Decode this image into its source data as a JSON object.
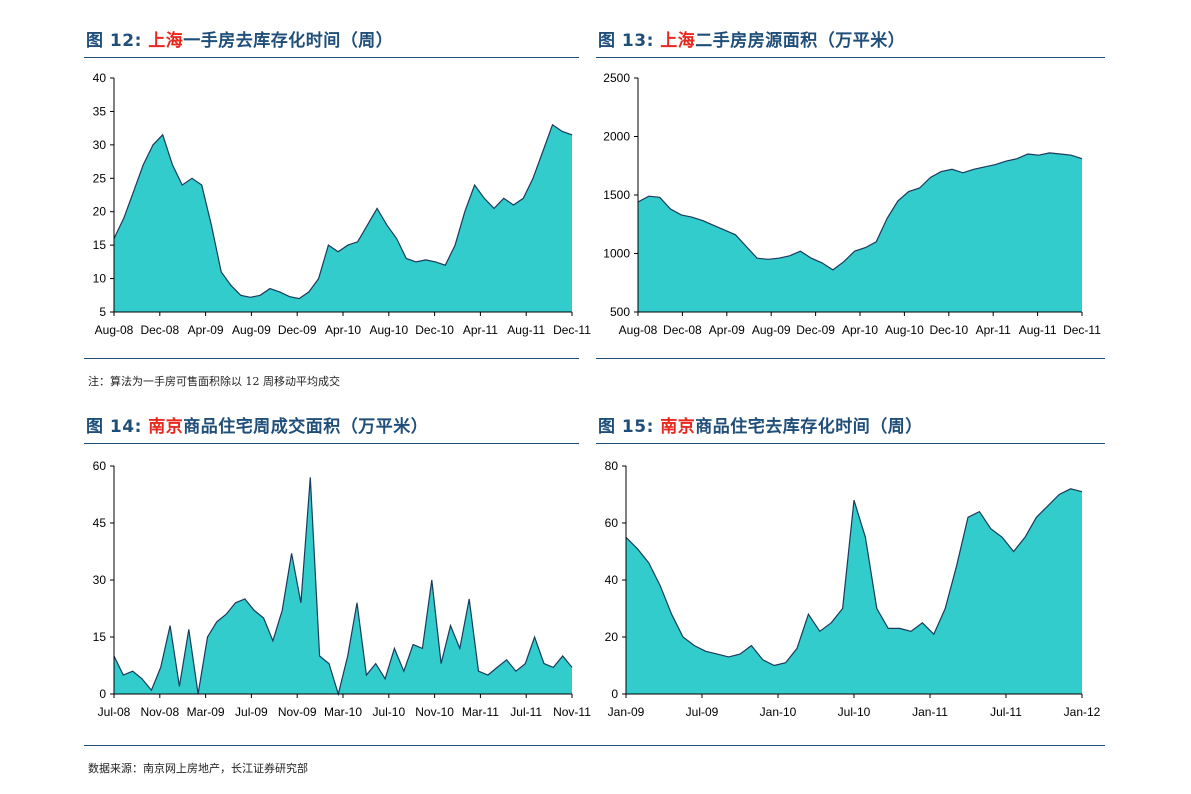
{
  "charts": [
    {
      "title_prefix": "图 12:",
      "title_city": "上海",
      "title_rest": "一手房去库存化时间（周）"
    },
    {
      "title_prefix": "图 13:",
      "title_city": "上海",
      "title_rest": "二手房房源面积（万平米）"
    },
    {
      "title_prefix": "图 14:",
      "title_city": "南京",
      "title_rest": "商品住宅周成交面积（万平米）"
    },
    {
      "title_prefix": "图 15:",
      "title_city": "南京",
      "title_rest": "商品住宅去库存化时间（周）"
    }
  ],
  "notes": {
    "top_note": "注：算法为一手房可售面积除以 12 周移动平均成交",
    "bottom_note": "数据来源：南京网上房地产，长江证券研究部"
  },
  "colors": {
    "fill": "#33cccc",
    "line": "#1a3a5c",
    "title": "#1f4e79",
    "city": "#e8281e"
  },
  "chart_data": [
    {
      "type": "area",
      "ylim": [
        5,
        40
      ],
      "yticks": [
        5,
        10,
        15,
        20,
        25,
        30,
        35,
        40
      ],
      "x_ticks": [
        "Aug-08",
        "Dec-08",
        "Apr-09",
        "Aug-09",
        "Dec-09",
        "Apr-10",
        "Aug-10",
        "Dec-10",
        "Apr-11",
        "Aug-11",
        "Dec-11"
      ],
      "x_range": [
        "2008-08",
        "2012-01"
      ],
      "series": [
        {
          "values": [
            [
              0,
              16
            ],
            [
              1,
              19
            ],
            [
              2,
              23
            ],
            [
              3,
              27
            ],
            [
              4,
              30
            ],
            [
              5,
              31.5
            ],
            [
              6,
              27
            ],
            [
              7,
              24
            ],
            [
              8,
              25
            ],
            [
              9,
              24
            ],
            [
              10,
              18
            ],
            [
              11,
              11
            ],
            [
              12,
              9
            ],
            [
              13,
              7.5
            ],
            [
              14,
              7.2
            ],
            [
              15,
              7.5
            ],
            [
              16,
              8.5
            ],
            [
              17,
              8
            ],
            [
              18,
              7.3
            ],
            [
              19,
              7
            ],
            [
              20,
              8
            ],
            [
              21,
              10
            ],
            [
              22,
              15
            ],
            [
              23,
              14
            ],
            [
              24,
              15
            ],
            [
              25,
              15.5
            ],
            [
              26,
              18
            ],
            [
              27,
              20.5
            ],
            [
              28,
              18
            ],
            [
              29,
              16
            ],
            [
              30,
              13
            ],
            [
              31,
              12.5
            ],
            [
              32,
              12.8
            ],
            [
              33,
              12.5
            ],
            [
              34,
              12
            ],
            [
              35,
              15
            ],
            [
              36,
              20
            ],
            [
              37,
              24
            ],
            [
              38,
              22
            ],
            [
              39,
              20.5
            ],
            [
              40,
              22
            ],
            [
              41,
              21
            ],
            [
              42,
              22
            ],
            [
              43,
              25
            ],
            [
              44,
              29
            ],
            [
              45,
              33
            ],
            [
              46,
              32
            ],
            [
              47,
              31.5
            ]
          ]
        }
      ]
    },
    {
      "type": "area",
      "ylim": [
        500,
        2500
      ],
      "yticks": [
        500,
        1000,
        1500,
        2000,
        2500
      ],
      "x_ticks": [
        "Aug-08",
        "Dec-08",
        "Apr-09",
        "Aug-09",
        "Dec-09",
        "Apr-10",
        "Aug-10",
        "Dec-10",
        "Apr-11",
        "Aug-11",
        "Dec-11"
      ],
      "x_range": [
        "2008-08",
        "2012-01"
      ],
      "series": [
        {
          "values": [
            [
              0,
              1440
            ],
            [
              1,
              1490
            ],
            [
              2,
              1480
            ],
            [
              3,
              1380
            ],
            [
              4,
              1330
            ],
            [
              5,
              1310
            ],
            [
              6,
              1280
            ],
            [
              7,
              1240
            ],
            [
              8,
              1200
            ],
            [
              9,
              1160
            ],
            [
              10,
              1060
            ],
            [
              11,
              960
            ],
            [
              12,
              950
            ],
            [
              13,
              960
            ],
            [
              14,
              980
            ],
            [
              15,
              1020
            ],
            [
              16,
              960
            ],
            [
              17,
              920
            ],
            [
              18,
              860
            ],
            [
              19,
              930
            ],
            [
              20,
              1020
            ],
            [
              21,
              1050
            ],
            [
              22,
              1100
            ],
            [
              23,
              1300
            ],
            [
              24,
              1450
            ],
            [
              25,
              1530
            ],
            [
              26,
              1560
            ],
            [
              27,
              1650
            ],
            [
              28,
              1700
            ],
            [
              29,
              1720
            ],
            [
              30,
              1690
            ],
            [
              31,
              1720
            ],
            [
              32,
              1740
            ],
            [
              33,
              1760
            ],
            [
              34,
              1790
            ],
            [
              35,
              1810
            ],
            [
              36,
              1850
            ],
            [
              37,
              1840
            ],
            [
              38,
              1860
            ],
            [
              39,
              1850
            ],
            [
              40,
              1840
            ],
            [
              41,
              1810
            ]
          ]
        }
      ]
    },
    {
      "type": "area",
      "ylim": [
        0,
        60
      ],
      "yticks": [
        0,
        15,
        30,
        45,
        60
      ],
      "x_ticks": [
        "Jul-08",
        "Nov-08",
        "Mar-09",
        "Jul-09",
        "Nov-09",
        "Mar-10",
        "Jul-10",
        "Nov-10",
        "Mar-11",
        "Jul-11",
        "Nov-11"
      ],
      "x_range": [
        "2008-07",
        "2012-01"
      ],
      "series": [
        {
          "values": [
            [
              0,
              10
            ],
            [
              1,
              5
            ],
            [
              2,
              6
            ],
            [
              3,
              4
            ],
            [
              4,
              1
            ],
            [
              5,
              7
            ],
            [
              6,
              18
            ],
            [
              7,
              2
            ],
            [
              8,
              17
            ],
            [
              9,
              0
            ],
            [
              10,
              15
            ],
            [
              11,
              19
            ],
            [
              12,
              21
            ],
            [
              13,
              24
            ],
            [
              14,
              25
            ],
            [
              15,
              22
            ],
            [
              16,
              20
            ],
            [
              17,
              14
            ],
            [
              18,
              22
            ],
            [
              19,
              37
            ],
            [
              20,
              24
            ],
            [
              21,
              57
            ],
            [
              22,
              10
            ],
            [
              23,
              8
            ],
            [
              24,
              0
            ],
            [
              25,
              10
            ],
            [
              26,
              24
            ],
            [
              27,
              5
            ],
            [
              28,
              8
            ],
            [
              29,
              4
            ],
            [
              30,
              12
            ],
            [
              31,
              6
            ],
            [
              32,
              13
            ],
            [
              33,
              12
            ],
            [
              34,
              30
            ],
            [
              35,
              8
            ],
            [
              36,
              18
            ],
            [
              37,
              12
            ],
            [
              38,
              25
            ],
            [
              39,
              6
            ],
            [
              40,
              5
            ],
            [
              41,
              7
            ],
            [
              42,
              9
            ],
            [
              43,
              6
            ],
            [
              44,
              8
            ],
            [
              45,
              15
            ],
            [
              46,
              8
            ],
            [
              47,
              7
            ],
            [
              48,
              10
            ],
            [
              49,
              7
            ]
          ]
        }
      ]
    },
    {
      "type": "area",
      "ylim": [
        0,
        80
      ],
      "yticks": [
        0,
        20,
        40,
        60,
        80
      ],
      "x_ticks": [
        "Jan-09",
        "Jul-09",
        "Jan-10",
        "Jul-10",
        "Jan-11",
        "Jul-11",
        "Jan-12"
      ],
      "x_range": [
        "2009-01",
        "2012-01"
      ],
      "series": [
        {
          "values": [
            [
              0,
              55
            ],
            [
              1,
              51
            ],
            [
              2,
              46
            ],
            [
              3,
              38
            ],
            [
              4,
              28
            ],
            [
              5,
              20
            ],
            [
              6,
              17
            ],
            [
              7,
              15
            ],
            [
              8,
              14
            ],
            [
              9,
              13
            ],
            [
              10,
              14
            ],
            [
              11,
              17
            ],
            [
              12,
              12
            ],
            [
              13,
              10
            ],
            [
              14,
              11
            ],
            [
              15,
              16
            ],
            [
              16,
              28
            ],
            [
              17,
              22
            ],
            [
              18,
              25
            ],
            [
              19,
              30
            ],
            [
              20,
              68
            ],
            [
              21,
              55
            ],
            [
              22,
              30
            ],
            [
              23,
              23
            ],
            [
              24,
              23
            ],
            [
              25,
              22
            ],
            [
              26,
              25
            ],
            [
              27,
              21
            ],
            [
              28,
              30
            ],
            [
              29,
              45
            ],
            [
              30,
              62
            ],
            [
              31,
              64
            ],
            [
              32,
              58
            ],
            [
              33,
              55
            ],
            [
              34,
              50
            ],
            [
              35,
              55
            ],
            [
              36,
              62
            ],
            [
              37,
              66
            ],
            [
              38,
              70
            ],
            [
              39,
              72
            ],
            [
              40,
              71
            ]
          ]
        }
      ]
    }
  ]
}
